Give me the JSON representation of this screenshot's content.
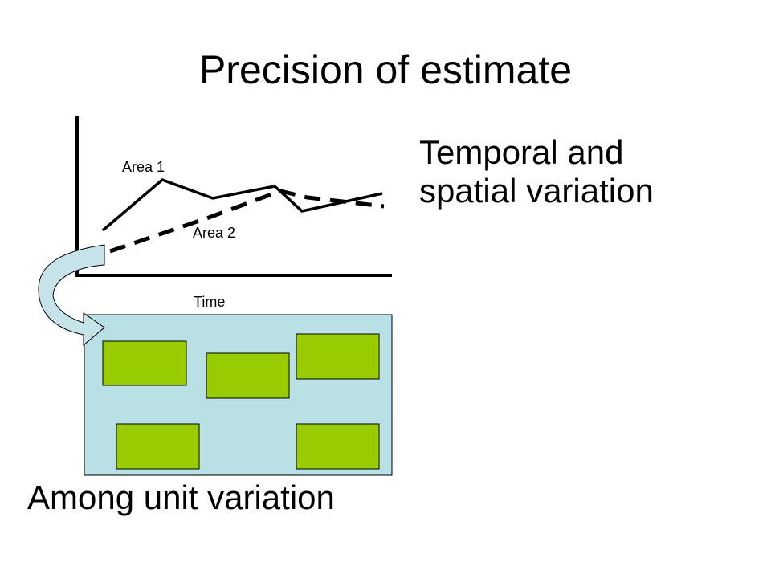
{
  "slide": {
    "title": "Precision of estimate",
    "side_note_lines": [
      "Temporal and",
      "spatial variation"
    ],
    "bottom_label": "Among unit variation"
  },
  "graph": {
    "series_1_label": "Area 1",
    "series_2_label": "Area 2",
    "x_axis_label": "Time"
  },
  "colors": {
    "panel": "#b9e0e5",
    "unit_block": "#99cc00",
    "arrow": "#c6e3ea",
    "line": "#000000"
  },
  "panel": {
    "unit_count": 5,
    "icon": "curved-arrow-icon"
  }
}
